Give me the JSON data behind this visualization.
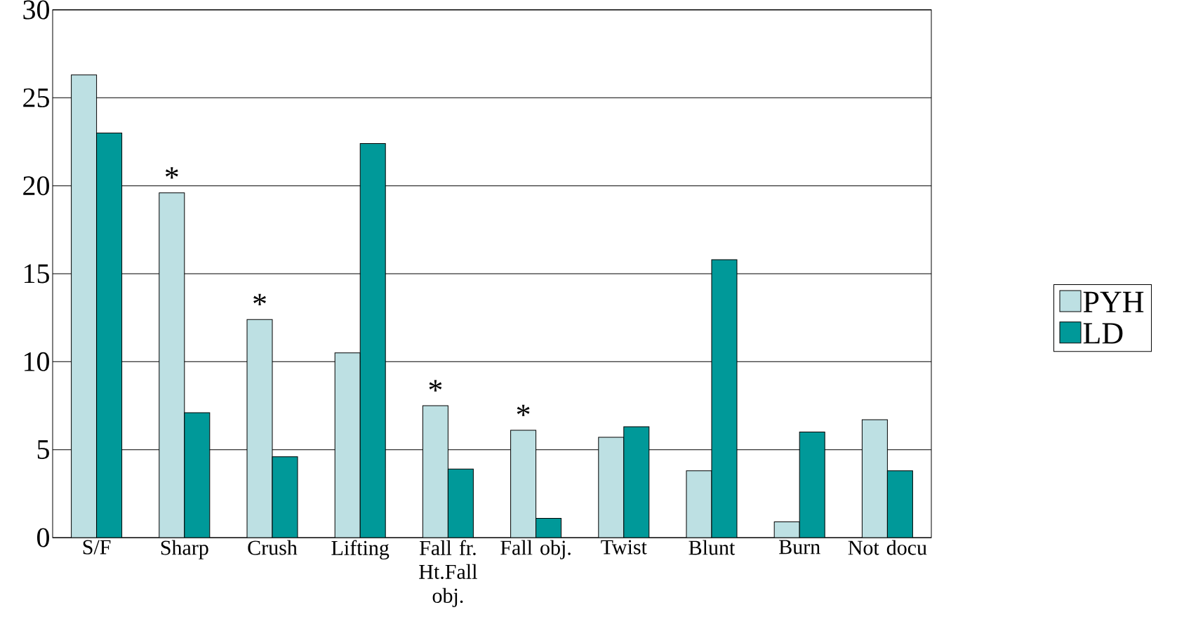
{
  "chart_data": {
    "type": "bar",
    "categories": [
      "S/F",
      "Sharp",
      "Crush",
      "Lifting",
      "Fall fr. Ht.Fall obj.",
      "Fall obj.",
      "Twist",
      "Blunt",
      "Burn",
      "Not docu"
    ],
    "series": [
      {
        "name": "PYH",
        "color": "#bde0e3",
        "values": [
          26.3,
          19.6,
          12.4,
          10.5,
          7.5,
          6.1,
          5.7,
          3.8,
          0.9,
          6.7
        ]
      },
      {
        "name": "LD",
        "color": "#009999",
        "values": [
          23.0,
          7.1,
          4.6,
          22.4,
          3.9,
          1.1,
          6.3,
          15.8,
          6.0,
          3.8
        ]
      }
    ],
    "ylim": [
      0,
      30
    ],
    "yticks": [
      0,
      5,
      10,
      15,
      20,
      25,
      30
    ],
    "grid": "y",
    "legend": "right",
    "annotations": [
      {
        "text": "*",
        "x": "Sharp",
        "y": 19.6
      },
      {
        "text": "*",
        "x": "Crush",
        "y": 12.4
      },
      {
        "text": "*",
        "x": "Fall fr. Ht.Fall obj.",
        "y": 7.5
      },
      {
        "text": "*",
        "x": "Fall obj.",
        "y": 6.1
      }
    ]
  }
}
